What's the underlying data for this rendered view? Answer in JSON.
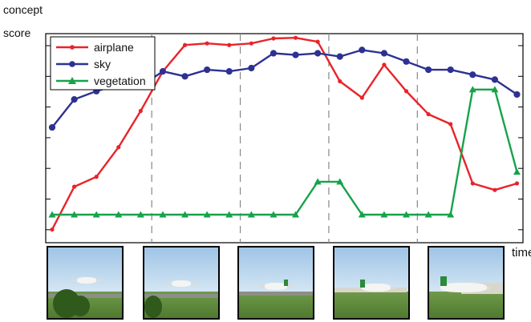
{
  "chart_data": {
    "type": "line",
    "ylabel_line1": "concept",
    "ylabel_line2": "score",
    "xlabel": "time",
    "x": [
      1,
      2,
      3,
      4,
      5,
      6,
      7,
      8,
      9,
      10,
      11,
      12,
      13,
      14,
      15,
      16,
      17,
      18,
      19,
      20,
      21,
      22
    ],
    "ylim": [
      0,
      6.2
    ],
    "xlim": [
      1,
      22.2
    ],
    "grid": "dashed vertical separators",
    "legend": "top-left",
    "series": [
      {
        "name": "airplane",
        "color": "#e8242a",
        "marker": "dot",
        "values": [
          0.4,
          1.7,
          2.0,
          2.9,
          4.0,
          5.2,
          6.0,
          6.05,
          6.0,
          6.05,
          6.2,
          6.22,
          6.1,
          4.9,
          4.4,
          5.4,
          4.6,
          3.9,
          3.6,
          1.8,
          1.6,
          1.8
        ]
      },
      {
        "name": "sky",
        "color": "#2e3192",
        "marker": "circle",
        "values": [
          3.5,
          4.35,
          4.6,
          4.8,
          4.75,
          5.2,
          5.05,
          5.25,
          5.2,
          5.3,
          5.75,
          5.7,
          5.75,
          5.65,
          5.85,
          5.75,
          5.5,
          5.25,
          5.25,
          5.1,
          4.95,
          4.5
        ]
      },
      {
        "name": "vegetation",
        "color": "#16a34a",
        "marker": "triangle",
        "values": [
          0.85,
          0.85,
          0.85,
          0.85,
          0.85,
          0.85,
          0.85,
          0.85,
          0.85,
          0.85,
          0.85,
          0.85,
          1.85,
          1.85,
          0.85,
          0.85,
          0.85,
          0.85,
          0.85,
          4.65,
          4.65,
          2.15
        ]
      }
    ]
  },
  "separators_after_x": [
    5,
    9,
    13,
    17
  ],
  "thumbnails": [
    {
      "scene": "airplane-over-trees"
    },
    {
      "scene": "airplane-landing"
    },
    {
      "scene": "airplane-near-ground"
    },
    {
      "scene": "airplane-on-runway"
    },
    {
      "scene": "airplane-close-up"
    }
  ]
}
